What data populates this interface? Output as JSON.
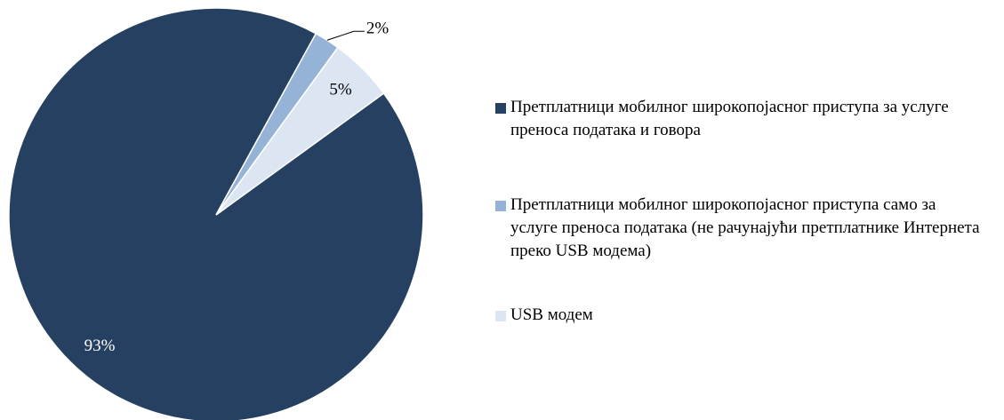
{
  "chart_data": {
    "type": "pie",
    "categories": [
      "Претплатници мобилног широкопојасног приступа за услуге преноса података и говора",
      "Претплатници мобилног широкопојасног приступа само за услуге преноса података (не рачунајући претплатнике Интернета преко USB модема)",
      "USB модем"
    ],
    "values": [
      93,
      2,
      5
    ],
    "value_labels": [
      "93%",
      "2%",
      "5%"
    ],
    "colors": [
      "#264061",
      "#95b3d7",
      "#dce6f2"
    ],
    "label_colors": [
      "#ffffff",
      "#000000",
      "#000000"
    ],
    "legend": "right"
  }
}
